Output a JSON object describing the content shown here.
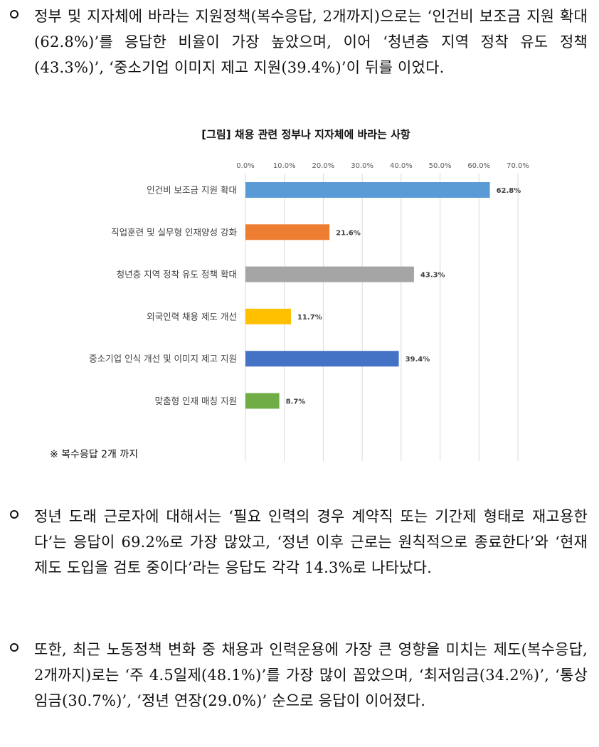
{
  "paragraphs": [
    "정부 및 지자체에 바라는 지원정책(복수응답, 2개까지)으로는 ‘인건비 보조금 지원 확대(62.8%)’를 응답한 비율이 가장 높았으며, 이어 ‘청년층 지역 정착 유도 정책(43.3%)’, ‘중소기업 이미지 제고 지원(39.4%)’이 뒤를 이었다.",
    "정년 도래 근로자에 대해서는 ‘필요 인력의 경우 계약직 또는 기간제 형태로 재고용한다’는 응답이 69.2%로 가장 많았고, ‘정년 이후 근로는 원칙적으로 종료한다’와 ‘현재 제도 도입을 검토 중이다’라는 응답도 각각 14.3%로 나타났다.",
    "또한, 최근 노동정책 변화 중 채용과 인력운용에 가장 큰 영향을 미치는 제도(복수응답, 2개까지)로는 ‘주 4.5일제(48.1%)’를 가장 많이 꼽았으며, ‘최저임금(34.2%)’, ‘통상임금(30.7%)’, ‘정년 연장(29.0%)’ 순으로 응답이 이어졌다."
  ],
  "figure": {
    "title": "[그림] 채용 관련 정부나 지자체에 바라는 사항",
    "note": "※ 복수응답 2개 까지"
  },
  "chart_data": {
    "type": "bar",
    "orientation": "horizontal",
    "title": "[그림] 채용 관련 정부나 지자체에 바라는 사항",
    "categories": [
      "인건비 보조금 지원 확대",
      "직업훈련 및 실무형 인재양성 강화",
      "청년층 지역 정착 유도 정책 확대",
      "외국인력 채용 제도 개선",
      "중소기업 인식 개선 및 이미지 제고 지원",
      "맞춤형 인재 매칭 지원"
    ],
    "values": [
      62.8,
      21.6,
      43.3,
      11.7,
      39.4,
      8.7
    ],
    "value_labels": [
      "62.8%",
      "21.6%",
      "43.3%",
      "11.7%",
      "39.4%",
      "8.7%"
    ],
    "colors": [
      "#5B9BD5",
      "#ED7D31",
      "#A5A5A5",
      "#FFC000",
      "#4472C4",
      "#70AD47"
    ],
    "xlim": [
      0,
      70
    ],
    "ticks": [
      0,
      10,
      20,
      30,
      40,
      50,
      60,
      70
    ],
    "tick_labels": [
      "0.0%",
      "10.0%",
      "20.0%",
      "30.0%",
      "40.0%",
      "50.0%",
      "60.0%",
      "70.0%"
    ],
    "axis_position": "top",
    "grid": true,
    "legend": false
  }
}
